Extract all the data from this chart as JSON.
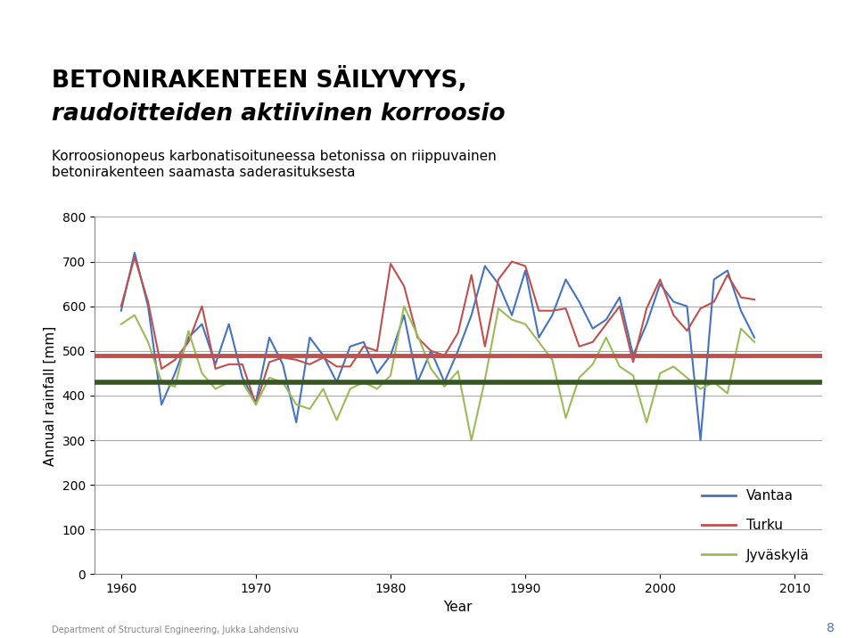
{
  "title_line1": "BETONIRAKENTEEN SÄILYVYYS,",
  "title_line2": "raudoitteiden aktiivinen korroosio",
  "subtitle": "Korroosionopeus karbonatisoituneessa betonissa on riippuvainen\nbetonirakenteen saamasta saderasituksesta",
  "xlabel": "Year",
  "ylabel": "Annual rainfall [mm]",
  "ylim": [
    0,
    800
  ],
  "xlim": [
    1958,
    2012
  ],
  "yticks": [
    0,
    100,
    200,
    300,
    400,
    500,
    600,
    700,
    800
  ],
  "xticks": [
    1960,
    1970,
    1980,
    1990,
    2000,
    2010
  ],
  "background_color": "#ffffff",
  "plot_bg_color": "#ffffff",
  "grid_color": "#aaaaaa",
  "hline_red": 490,
  "hline_green": 430,
  "legend_labels": [
    "Vantaa",
    "Turku",
    "Jyväskylä"
  ],
  "vantaa_color": "#4472C4",
  "turku_color": "#C0504D",
  "jyvaskyla_color": "#9BBB59",
  "hline_red_color": "#C0504D",
  "hline_green_color": "#375623",
  "header_green_bar_color": "#c6e0b4",
  "header_blue_bar_color": "#4BACC6",
  "years_vantaa": [
    1960,
    1961,
    1962,
    1963,
    1964,
    1965,
    1966,
    1967,
    1968,
    1969,
    1970,
    1971,
    1972,
    1973,
    1974,
    1975,
    1976,
    1977,
    1978,
    1979,
    1980,
    1981,
    1982,
    1983,
    1984,
    1985,
    1986,
    1987,
    1988,
    1989,
    1990,
    1991,
    1992,
    1993,
    1994,
    1995,
    1996,
    1997,
    1998,
    1999,
    2000,
    2001,
    2002,
    2003,
    2004,
    2005,
    2006,
    2007
  ],
  "vantaa": [
    590,
    720,
    600,
    380,
    450,
    530,
    560,
    470,
    560,
    440,
    385,
    530,
    470,
    340,
    530,
    490,
    430,
    510,
    520,
    450,
    490,
    580,
    430,
    500,
    430,
    500,
    580,
    690,
    650,
    580,
    680,
    530,
    580,
    660,
    610,
    550,
    570,
    620,
    490,
    560,
    650,
    610,
    600,
    300,
    660,
    680,
    590,
    530
  ],
  "years_turku": [
    1960,
    1961,
    1962,
    1963,
    1964,
    1965,
    1966,
    1967,
    1968,
    1969,
    1970,
    1971,
    1972,
    1973,
    1974,
    1975,
    1976,
    1977,
    1978,
    1979,
    1980,
    1981,
    1982,
    1983,
    1984,
    1985,
    1986,
    1987,
    1988,
    1989,
    1990,
    1991,
    1992,
    1993,
    1994,
    1995,
    1996,
    1997,
    1998,
    1999,
    2000,
    2001,
    2002,
    2003,
    2004,
    2005,
    2006,
    2007
  ],
  "turku": [
    600,
    710,
    610,
    460,
    480,
    520,
    600,
    460,
    470,
    470,
    380,
    475,
    485,
    480,
    470,
    485,
    465,
    465,
    510,
    500,
    695,
    645,
    530,
    500,
    490,
    540,
    670,
    510,
    660,
    700,
    690,
    590,
    590,
    595,
    510,
    520,
    560,
    600,
    475,
    595,
    660,
    580,
    545,
    595,
    610,
    670,
    620,
    615
  ],
  "years_jyvaskyla": [
    1960,
    1961,
    1962,
    1963,
    1964,
    1965,
    1966,
    1967,
    1968,
    1969,
    1970,
    1971,
    1972,
    1973,
    1974,
    1975,
    1976,
    1977,
    1978,
    1979,
    1980,
    1981,
    1982,
    1983,
    1984,
    1985,
    1986,
    1987,
    1988,
    1989,
    1990,
    1991,
    1992,
    1993,
    1994,
    1995,
    1996,
    1997,
    1998,
    1999,
    2000,
    2001,
    2002,
    2003,
    2004,
    2005,
    2006,
    2007
  ],
  "jyvaskyla": [
    560,
    580,
    520,
    430,
    420,
    545,
    450,
    415,
    430,
    430,
    380,
    440,
    430,
    380,
    370,
    415,
    345,
    415,
    430,
    415,
    445,
    600,
    535,
    460,
    420,
    455,
    300,
    435,
    595,
    570,
    560,
    520,
    480,
    350,
    440,
    470,
    530,
    465,
    445,
    340,
    450,
    465,
    440,
    415,
    430,
    405,
    550,
    520
  ],
  "page_num": "8",
  "footer_text": "Department of Structural Engineering, Jukka Lahdensivu"
}
